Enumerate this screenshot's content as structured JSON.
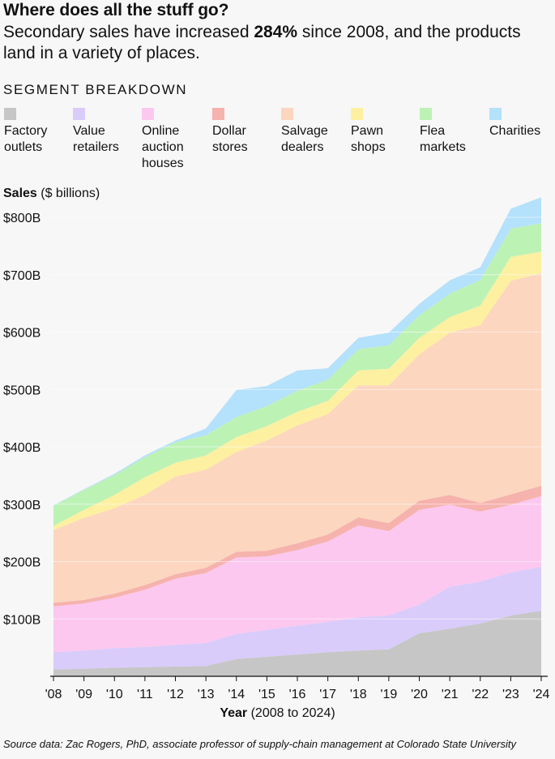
{
  "headline": "Where does all the stuff go?",
  "subtitle": {
    "before": "Secondary sales have increased ",
    "highlight": "284%",
    "after": " since 2008, and the products land in a variety of places."
  },
  "section_label": "SEGMENT BREAKDOWN",
  "legend": [
    {
      "label": "Factory outlets",
      "color": "#c6c6c6"
    },
    {
      "label": "Value retailers",
      "color": "#d9ccfa"
    },
    {
      "label": "Online auction houses",
      "color": "#fcc8ef"
    },
    {
      "label": "Dollar stores",
      "color": "#f6b2ad"
    },
    {
      "label": "Salvage dealers",
      "color": "#fcd6bf"
    },
    {
      "label": "Pawn shops",
      "color": "#fdf0a1"
    },
    {
      "label": "Flea markets",
      "color": "#bdf2b5"
    },
    {
      "label": "Charities",
      "color": "#b4e1fb"
    }
  ],
  "y_title": {
    "bold": "Sales",
    "rest": " ($ billions)"
  },
  "x_title": {
    "bold": "Year",
    "rest": " (2008 to 2024)"
  },
  "source": "Source data: Zac Rogers, PhD, associate professor of supply-chain management at Colorado State University",
  "chart_data": {
    "type": "area",
    "stacked": true,
    "title": "Where does all the stuff go?",
    "xlabel": "Year (2008 to 2024)",
    "ylabel": "Sales ($ billions)",
    "ylim": [
      0,
      850
    ],
    "y_ticks": [
      100,
      200,
      300,
      400,
      500,
      600,
      700,
      800
    ],
    "y_tick_labels": [
      "$100B",
      "$200B",
      "$300B",
      "$400B",
      "$500B",
      "$600B",
      "$700B",
      "$800B"
    ],
    "x": [
      2008,
      2009,
      2010,
      2011,
      2012,
      2013,
      2014,
      2015,
      2016,
      2017,
      2018,
      2019,
      2020,
      2021,
      2022,
      2023,
      2024
    ],
    "x_tick_labels": [
      "'08",
      "'09",
      "'10",
      "'11",
      "'12",
      "'13",
      "'14",
      "'15",
      "'16",
      "'17",
      "'18",
      "'19",
      "'20",
      "'21",
      "'22",
      "'23",
      "'24"
    ],
    "series": [
      {
        "name": "Factory outlets",
        "color": "#c6c6c6",
        "values": [
          12,
          13,
          15,
          16,
          17,
          18,
          30,
          34,
          38,
          42,
          45,
          47,
          75,
          83,
          92,
          106,
          114
        ]
      },
      {
        "name": "Value retailers",
        "color": "#d9ccfa",
        "values": [
          30,
          32,
          34,
          35,
          38,
          40,
          44,
          47,
          50,
          53,
          58,
          59,
          50,
          73,
          73,
          75,
          77
        ]
      },
      {
        "name": "Online auction houses",
        "color": "#fcc8ef",
        "values": [
          80,
          82,
          88,
          100,
          115,
          122,
          133,
          128,
          132,
          140,
          160,
          147,
          165,
          143,
          122,
          118,
          123
        ]
      },
      {
        "name": "Dollar stores",
        "color": "#f6b2ad",
        "values": [
          6,
          6,
          7,
          8,
          8,
          9,
          10,
          10,
          12,
          12,
          14,
          14,
          16,
          17,
          15,
          18,
          18
        ]
      },
      {
        "name": "Salvage dealers",
        "color": "#fcd6bf",
        "values": [
          127,
          143,
          149,
          157,
          170,
          171,
          174,
          192,
          205,
          210,
          230,
          240,
          255,
          283,
          310,
          372,
          371
        ]
      },
      {
        "name": "Pawn shops",
        "color": "#fdf0a1",
        "values": [
          7,
          14,
          23,
          31,
          24,
          25,
          26,
          25,
          24,
          23,
          26,
          29,
          29,
          27,
          34,
          42,
          37
        ]
      },
      {
        "name": "Flea markets",
        "color": "#bdf2b5",
        "values": [
          35,
          35,
          35,
          35,
          36,
          35,
          35,
          35,
          37,
          37,
          37,
          41,
          39,
          41,
          45,
          49,
          50
        ]
      },
      {
        "name": "Charities",
        "color": "#b4e1fb",
        "values": [
          1,
          1,
          2,
          3,
          3,
          12,
          47,
          35,
          35,
          20,
          20,
          22,
          20,
          23,
          22,
          35,
          45
        ]
      }
    ]
  }
}
